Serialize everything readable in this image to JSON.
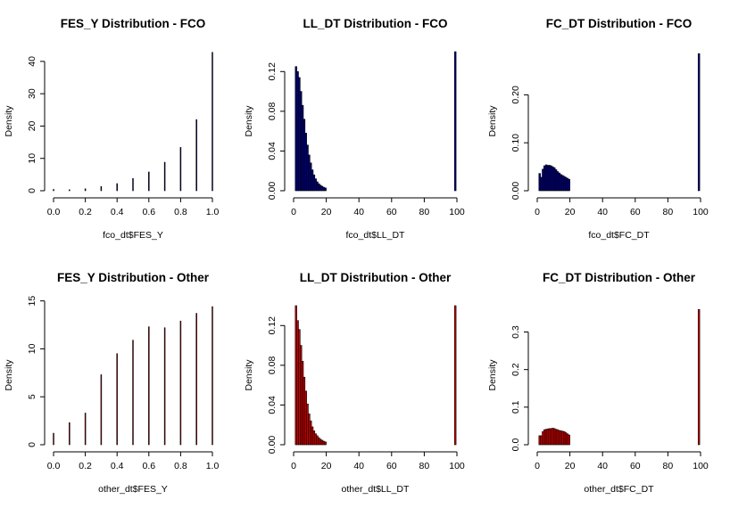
{
  "chart_data": [
    {
      "type": "bar",
      "title": "FES_Y Distribution - FCO",
      "xlabel": "fco_dt$FES_Y",
      "ylabel": "Density",
      "xlim": [
        0,
        1
      ],
      "ylim": [
        0,
        43
      ],
      "xticks": [
        "0.0",
        "0.2",
        "0.4",
        "0.6",
        "0.8",
        "1.0"
      ],
      "yticks": [
        "0",
        "10",
        "20",
        "30",
        "40"
      ],
      "grid": false,
      "bin_width": 0.005,
      "bars": [
        {
          "x": 0.0,
          "value": 0.4,
          "color": "#000080"
        },
        {
          "x": 0.1,
          "value": 0.3,
          "color": "#000080"
        },
        {
          "x": 0.2,
          "value": 0.6,
          "color": "#000080"
        },
        {
          "x": 0.3,
          "value": 1.3,
          "color": "#000080"
        },
        {
          "x": 0.4,
          "value": 2.2,
          "color": "#000080"
        },
        {
          "x": 0.5,
          "value": 3.8,
          "color": "#000080"
        },
        {
          "x": 0.6,
          "value": 5.8,
          "color": "#000080"
        },
        {
          "x": 0.7,
          "value": 8.8,
          "color": "#000080"
        },
        {
          "x": 0.8,
          "value": 13.4,
          "color": "#000080"
        },
        {
          "x": 0.9,
          "value": 22.0,
          "color": "#000080"
        },
        {
          "x": 1.0,
          "value": 42.8,
          "color": "#000080"
        }
      ]
    },
    {
      "type": "bar",
      "title": "LL_DT Distribution - FCO",
      "xlabel": "fco_dt$LL_DT",
      "ylabel": "Density",
      "xlim": [
        0,
        100
      ],
      "ylim": [
        0,
        0.14
      ],
      "xticks": [
        "0",
        "20",
        "40",
        "60",
        "80",
        "100"
      ],
      "yticks": [
        "0.00",
        "0.04",
        "0.08",
        "0.12"
      ],
      "grid": false,
      "bin_width": 1,
      "fill": "#000080",
      "bin_start": 1,
      "values": [
        0.125,
        0.12,
        0.114,
        0.1,
        0.086,
        0.072,
        0.058,
        0.046,
        0.036,
        0.028,
        0.021,
        0.016,
        0.012,
        0.009,
        0.007,
        0.0055,
        0.0045,
        0.0035,
        0.0028
      ],
      "extra_bars": [
        {
          "x": 98.5,
          "value": 0.14
        }
      ]
    },
    {
      "type": "bar",
      "title": "FC_DT Distribution - FCO",
      "xlabel": "fco_dt$FC_DT",
      "ylabel": "Density",
      "xlim": [
        0,
        100
      ],
      "ylim": [
        0,
        0.29
      ],
      "xticks": [
        "0",
        "20",
        "40",
        "60",
        "80",
        "100"
      ],
      "yticks": [
        "0.00",
        "0.10",
        "0.20"
      ],
      "grid": false,
      "bin_width": 1,
      "fill": "#000080",
      "bin_start": 1,
      "values": [
        0.036,
        0.028,
        0.045,
        0.052,
        0.054,
        0.053,
        0.053,
        0.052,
        0.05,
        0.048,
        0.044,
        0.04,
        0.037,
        0.034,
        0.032,
        0.03,
        0.028,
        0.026,
        0.024
      ],
      "extra_bars": [
        {
          "x": 98.5,
          "value": 0.286
        }
      ]
    },
    {
      "type": "bar",
      "title": "FES_Y Distribution - Other",
      "xlabel": "other_dt$FES_Y",
      "ylabel": "Density",
      "xlim": [
        0,
        1
      ],
      "ylim": [
        0,
        14.5
      ],
      "xticks": [
        "0.0",
        "0.2",
        "0.4",
        "0.6",
        "0.8",
        "1.0"
      ],
      "yticks": [
        "0",
        "5",
        "10",
        "15"
      ],
      "grid": false,
      "bin_width": 0.005,
      "bars": [
        {
          "x": 0.0,
          "value": 1.2,
          "color": "#cc0000"
        },
        {
          "x": 0.1,
          "value": 2.3,
          "color": "#cc0000"
        },
        {
          "x": 0.2,
          "value": 3.3,
          "color": "#cc0000"
        },
        {
          "x": 0.3,
          "value": 7.3,
          "color": "#cc0000"
        },
        {
          "x": 0.4,
          "value": 9.5,
          "color": "#cc0000"
        },
        {
          "x": 0.5,
          "value": 10.9,
          "color": "#cc0000"
        },
        {
          "x": 0.6,
          "value": 12.3,
          "color": "#cc0000"
        },
        {
          "x": 0.7,
          "value": 12.2,
          "color": "#cc0000"
        },
        {
          "x": 0.8,
          "value": 12.9,
          "color": "#cc0000"
        },
        {
          "x": 0.9,
          "value": 13.7,
          "color": "#cc0000"
        },
        {
          "x": 1.0,
          "value": 14.4,
          "color": "#cc0000"
        }
      ]
    },
    {
      "type": "bar",
      "title": "LL_DT Distribution - Other",
      "xlabel": "other_dt$LL_DT",
      "ylabel": "Density",
      "xlim": [
        0,
        100
      ],
      "ylim": [
        0,
        0.14
      ],
      "xticks": [
        "0",
        "20",
        "40",
        "60",
        "80",
        "100"
      ],
      "yticks": [
        "0.00",
        "0.04",
        "0.08",
        "0.12"
      ],
      "grid": false,
      "bin_width": 1,
      "fill": "#cc0000",
      "bin_start": 1,
      "values": [
        0.14,
        0.125,
        0.116,
        0.1,
        0.084,
        0.068,
        0.054,
        0.041,
        0.031,
        0.024,
        0.018,
        0.014,
        0.011,
        0.009,
        0.007,
        0.0055,
        0.0045,
        0.0035,
        0.0028
      ],
      "extra_bars": [
        {
          "x": 98.5,
          "value": 0.14
        }
      ]
    },
    {
      "type": "bar",
      "title": "FC_DT Distribution - Other",
      "xlabel": "other_dt$FC_DT",
      "ylabel": "Density",
      "xlim": [
        0,
        100
      ],
      "ylim": [
        0,
        0.37
      ],
      "xticks": [
        "0",
        "20",
        "40",
        "60",
        "80",
        "100"
      ],
      "yticks": [
        "0.0",
        "0.1",
        "0.2",
        "0.3"
      ],
      "grid": false,
      "bin_width": 1,
      "fill": "#cc0000",
      "bin_start": 1,
      "values": [
        0.024,
        0.024,
        0.035,
        0.04,
        0.041,
        0.042,
        0.043,
        0.043,
        0.044,
        0.043,
        0.041,
        0.04,
        0.038,
        0.037,
        0.036,
        0.035,
        0.032,
        0.029,
        0.026
      ],
      "extra_bars": [
        {
          "x": 98.5,
          "value": 0.36
        }
      ]
    }
  ]
}
